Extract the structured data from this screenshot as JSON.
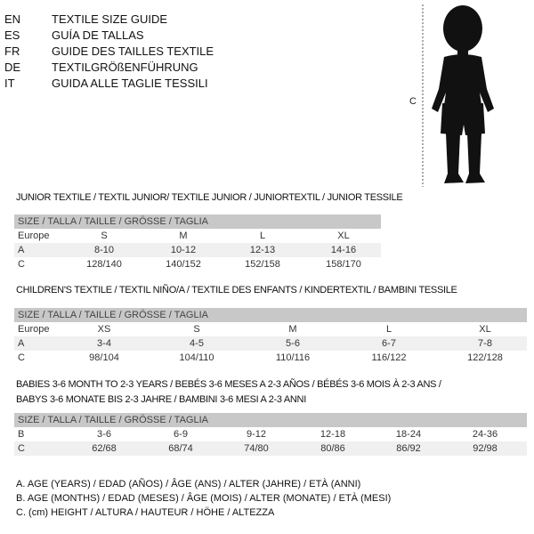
{
  "languages": [
    {
      "code": "EN",
      "label": "TEXTILE SIZE GUIDE"
    },
    {
      "code": "ES",
      "label": "GUÍA DE TALLAS"
    },
    {
      "code": "FR",
      "label": "GUIDE DES TAILLES TEXTILE"
    },
    {
      "code": "DE",
      "label": "TEXTILGRÖßENFÜHRUNG"
    },
    {
      "code": "IT",
      "label": "GUIDA ALLE TAGLIE TESSILI"
    }
  ],
  "figure": {
    "measure_label": "C"
  },
  "junior": {
    "title": "JUNIOR TEXTILE / TEXTIL JUNIOR/ TEXTILE JUNIOR / JUNIORTEXTIL / JUNIOR TESSILE",
    "header": "SIZE / TALLA / TAILLE / GRÖSSE / TAGLIA",
    "rows": [
      {
        "label": "Europe",
        "values": [
          "S",
          "M",
          "L",
          "XL"
        ]
      },
      {
        "label": "A",
        "values": [
          "8-10",
          "10-12",
          "12-13",
          "14-16"
        ]
      },
      {
        "label": "C",
        "values": [
          "128/140",
          "140/152",
          "152/158",
          "158/170"
        ]
      }
    ]
  },
  "children": {
    "title": "CHILDREN'S TEXTILE / TEXTIL NIÑO/A / TEXTILE DES ENFANTS / KINDERTEXTIL / BAMBINI TESSILE",
    "header": "SIZE / TALLA / TAILLE / GRÖSSE / TAGLIA",
    "rows": [
      {
        "label": "Europe",
        "values": [
          "XS",
          "S",
          "M",
          "L",
          "XL"
        ]
      },
      {
        "label": "A",
        "values": [
          "3-4",
          "4-5",
          "5-6",
          "6-7",
          "7-8"
        ]
      },
      {
        "label": "C",
        "values": [
          "98/104",
          "104/110",
          "110/116",
          "116/122",
          "122/128"
        ]
      }
    ]
  },
  "babies": {
    "title_line1": "BABIES 3-6 MONTH TO 2-3 YEARS / BEBÉS 3-6 MESES A 2-3 AÑOS / BÉBÉS 3-6 MOIS À 2-3 ANS /",
    "title_line2": "BABYS 3-6 MONATE BIS 2-3 JAHRE / BAMBINI 3-6 MESI A 2-3 ANNI",
    "header": "SIZE / TALLA / TAILLE / GRÖSSE / TAGLIA",
    "rows": [
      {
        "label": "B",
        "values": [
          "3-6",
          "6-9",
          "9-12",
          "12-18",
          "18-24",
          "24-36"
        ]
      },
      {
        "label": "C",
        "values": [
          "62/68",
          "68/74",
          "74/80",
          "80/86",
          "86/92",
          "92/98"
        ]
      }
    ]
  },
  "legend": [
    "A. AGE (YEARS) / EDAD (AÑOS) / ÂGE (ANS) / ALTER (JAHRE) / ETÀ (ANNI)",
    "B. AGE (MONTHS) / EDAD (MESES) / ÂGE (MOIS) / ALTER (MONATE) / ETÀ (MESI)",
    "C. (cm) HEIGHT / ALTURA / HAUTEUR / HÖHE / ALTEZZA"
  ]
}
